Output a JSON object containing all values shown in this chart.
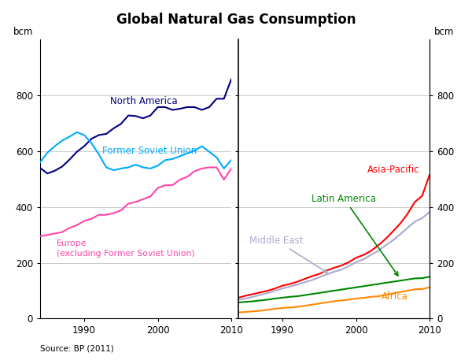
{
  "title": "Global Natural Gas Consumption",
  "ylabel_left": "bcm",
  "ylabel_right": "bcm",
  "source": "Source: BP (2011)",
  "ylim": [
    0,
    1000
  ],
  "yticks": [
    0,
    200,
    400,
    600,
    800
  ],
  "years": [
    1984,
    1985,
    1986,
    1987,
    1988,
    1989,
    1990,
    1991,
    1992,
    1993,
    1994,
    1995,
    1996,
    1997,
    1998,
    1999,
    2000,
    2001,
    2002,
    2003,
    2004,
    2005,
    2006,
    2007,
    2008,
    2009,
    2010
  ],
  "north_america": [
    540,
    520,
    530,
    545,
    570,
    598,
    618,
    645,
    658,
    662,
    682,
    698,
    728,
    726,
    718,
    728,
    758,
    758,
    748,
    752,
    758,
    758,
    748,
    758,
    788,
    788,
    858
  ],
  "former_soviet_union": [
    560,
    595,
    618,
    638,
    652,
    668,
    658,
    628,
    588,
    542,
    532,
    538,
    542,
    552,
    542,
    538,
    548,
    568,
    572,
    582,
    592,
    602,
    618,
    598,
    578,
    538,
    568
  ],
  "europe": [
    295,
    300,
    305,
    310,
    325,
    335,
    350,
    358,
    372,
    372,
    378,
    388,
    412,
    418,
    428,
    438,
    468,
    478,
    478,
    498,
    508,
    528,
    538,
    542,
    542,
    498,
    538
  ],
  "asia_pacific": [
    75,
    82,
    88,
    94,
    100,
    108,
    118,
    124,
    132,
    142,
    152,
    160,
    172,
    182,
    190,
    202,
    218,
    228,
    242,
    262,
    285,
    312,
    340,
    375,
    418,
    440,
    515
  ],
  "middle_east": [
    68,
    72,
    78,
    85,
    92,
    100,
    108,
    115,
    122,
    130,
    138,
    148,
    158,
    168,
    175,
    188,
    202,
    212,
    228,
    242,
    262,
    280,
    302,
    325,
    348,
    360,
    382
  ],
  "latin_america": [
    58,
    60,
    62,
    65,
    68,
    72,
    75,
    78,
    80,
    84,
    88,
    92,
    96,
    100,
    104,
    108,
    112,
    116,
    120,
    124,
    128,
    132,
    136,
    140,
    144,
    145,
    150
  ],
  "africa": [
    22,
    24,
    26,
    28,
    32,
    35,
    38,
    40,
    42,
    46,
    50,
    54,
    58,
    62,
    65,
    68,
    72,
    74,
    78,
    80,
    85,
    90,
    95,
    100,
    105,
    106,
    112
  ],
  "colors": {
    "north_america": "#000080",
    "former_soviet_union": "#00aaff",
    "europe": "#ff44aa",
    "asia_pacific": "#ff0000",
    "middle_east": "#aaaacc",
    "latin_america": "#008800",
    "africa": "#ff8800"
  },
  "background_color": "#ffffff",
  "grid_color": "#cccccc",
  "lw": 1.5,
  "left_xlim": [
    1984,
    2010
  ],
  "right_xlim": [
    1984,
    2010
  ],
  "left_xticks": [
    1990,
    2000,
    2010
  ],
  "right_xticks": [
    1990,
    2000,
    2010
  ]
}
